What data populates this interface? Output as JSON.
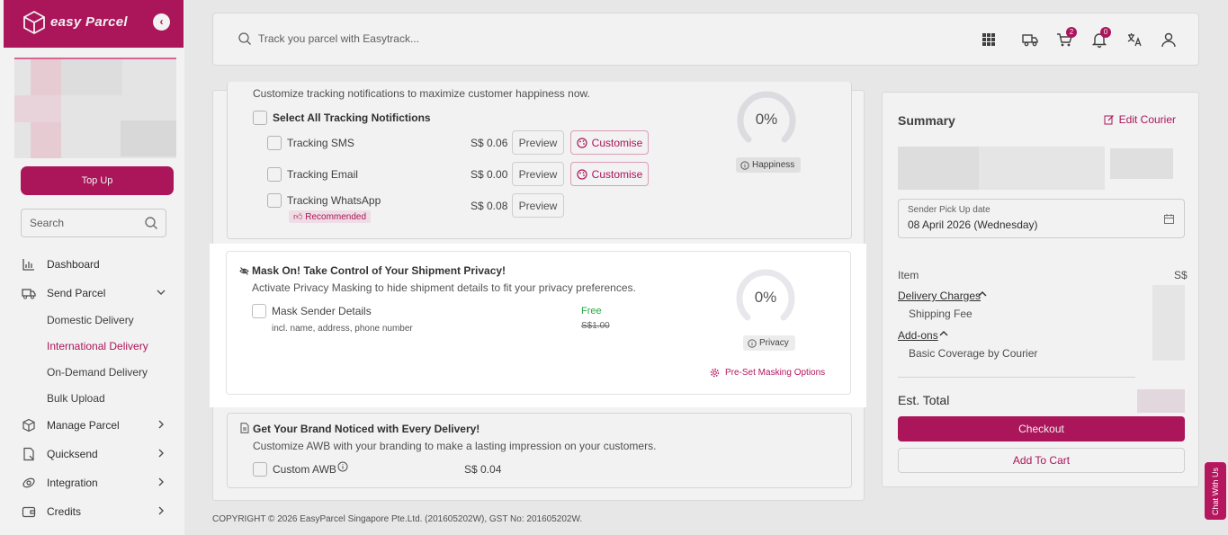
{
  "brand": {
    "name": "easy Parcel",
    "collapse_icon": "chevron-left-icon",
    "color": "#b5175f"
  },
  "sidebar": {
    "topup_label": "Top Up",
    "search_placeholder": "Search",
    "items": [
      {
        "label": "Dashboard",
        "icon": "bar-chart-icon"
      },
      {
        "label": "Send Parcel",
        "icon": "truck-icon"
      },
      {
        "label": "Manage Parcel",
        "icon": "box-icon"
      },
      {
        "label": "Quicksend",
        "icon": "document-icon"
      },
      {
        "label": "Integration",
        "icon": "link-icon"
      },
      {
        "label": "Credits",
        "icon": "wallet-icon"
      }
    ],
    "sub_items": [
      "Domestic Delivery",
      "International Delivery",
      "On-Demand Delivery",
      "Bulk Upload"
    ],
    "active_sub": "International Delivery"
  },
  "header": {
    "track_placeholder": "Track you parcel with Easytrack...",
    "cart_count": "2",
    "notification_count": "0"
  },
  "tracking": {
    "subtitle": "Customize tracking notifications to maximize customer happiness now.",
    "select_all_label": "Select All Tracking Notifictions",
    "rows": [
      {
        "label": "Tracking SMS",
        "price": "S$ 0.06",
        "preview": "Preview",
        "customise": "Customise"
      },
      {
        "label": "Tracking Email",
        "price": "S$ 0.00",
        "preview": "Preview",
        "customise": "Customise"
      },
      {
        "label": "Tracking WhatsApp",
        "price": "S$ 0.08",
        "preview": "Preview",
        "recommended": "Recommended"
      }
    ],
    "gauge_value": "0%",
    "gauge_label": "Happiness"
  },
  "privacy": {
    "title": "Mask On! Take Control of Your Shipment Privacy!",
    "subtitle": "Activate Privacy Masking to hide shipment details to fit your privacy preferences.",
    "option_label": "Mask Sender Details",
    "option_hint": "incl. name, address, phone number",
    "price_label": "Free",
    "old_price": "S$1.00",
    "gauge_value": "0%",
    "gauge_label": "Privacy",
    "preset_link": "Pre-Set Masking Options"
  },
  "branding": {
    "title": "Get Your Brand Noticed with Every Delivery!",
    "subtitle": "Customize AWB with your branding to make a lasting impression on your customers.",
    "option_label": "Custom AWB",
    "price": "S$ 0.04"
  },
  "summary": {
    "title": "Summary",
    "edit_label": "Edit Courier",
    "date_label": "Sender Pick Up date",
    "date_value": "08 April 2026 (Wednesday)",
    "item_label": "Item",
    "currency": "S$",
    "delivery_charges": "Delivery Charges",
    "shipping_fee": "Shipping Fee",
    "addons": "Add-ons",
    "coverage": "Basic Coverage by Courier",
    "est_total": "Est. Total",
    "checkout": "Checkout",
    "add_to_cart": "Add To Cart"
  },
  "footer": "COPYRIGHT © 2026 EasyParcel Singapore Pte.Ltd. (201605202W), GST No: 201605202W.",
  "chat_label": "Chat With Us"
}
